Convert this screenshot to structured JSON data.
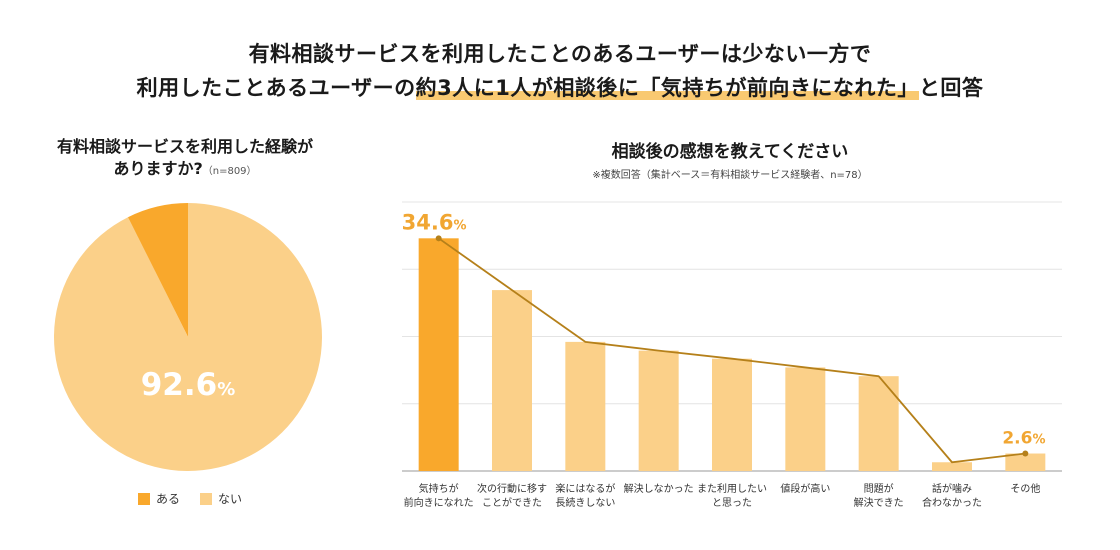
{
  "headline": {
    "line1": "有料相談サービスを利用したことのあるユーザーは少ない一方で",
    "line2_pre": "利用したことあるユーザーの",
    "line2_hl1": "約3人に1人が相談後に「気持ちが前向きになれた」",
    "line2_post": "と回答"
  },
  "pie": {
    "title_line1": "有料相談サービスを利用した経験が",
    "title_line2": "ありますか?",
    "n_label": "（n=809）",
    "center_label_num": "92.6",
    "center_label_pct": "%",
    "legend": [
      {
        "label": "ある",
        "color": "#f9a82c"
      },
      {
        "label": "ない",
        "color": "#fbd089"
      }
    ]
  },
  "bar": {
    "title": "相談後の感想を教えてください",
    "note": "※複数回答（集計ベース＝有料相談サービス経験者、n=78）",
    "top_label_num": "34.6",
    "min_label_num": "2.6",
    "pct": "%",
    "highlight_color": "#f9a82c",
    "base_color": "#fbd089",
    "line_color": "#b5801a",
    "label_color": "#f1a632"
  },
  "chart_data": [
    {
      "type": "pie",
      "title": "有料相談サービスを利用した経験がありますか?",
      "n": 809,
      "labels": [
        "ある",
        "ない"
      ],
      "values": [
        7.4,
        92.6
      ]
    },
    {
      "type": "bar",
      "title": "相談後の感想を教えてください",
      "categories": [
        [
          "気持ちが",
          "前向きになれた"
        ],
        [
          "次の行動に移す",
          "ことができた"
        ],
        [
          "楽にはなるが",
          "長続きしない"
        ],
        [
          "解決しなかった"
        ],
        [
          "また利用したい",
          "と思った"
        ],
        [
          "値段が高い"
        ],
        [
          "問題が",
          "解決できた"
        ],
        [
          "話が噛み",
          "合わなかった"
        ],
        [
          "その他"
        ]
      ],
      "values": [
        34.6,
        26.9,
        19.2,
        17.9,
        16.7,
        15.4,
        14.1,
        1.3,
        2.6
      ],
      "ylim": [
        0,
        40
      ],
      "gridlines": true,
      "overlay": "line"
    }
  ]
}
